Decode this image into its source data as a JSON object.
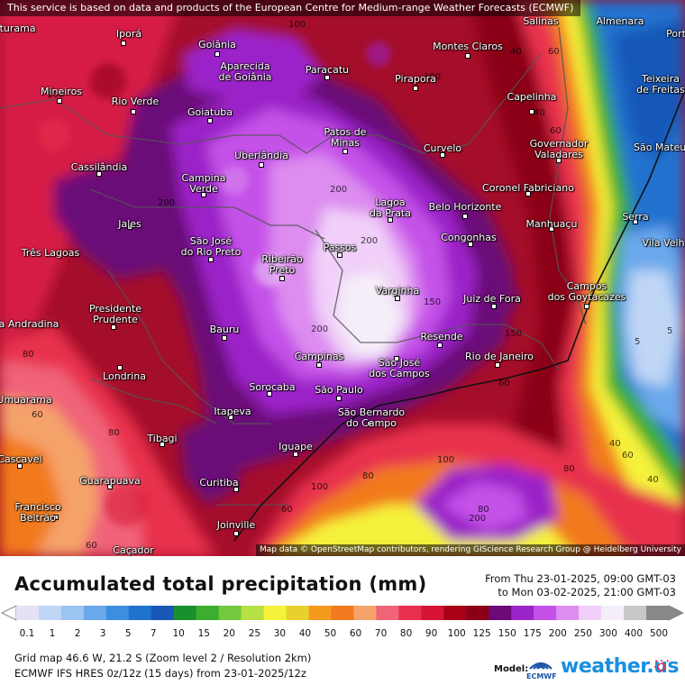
{
  "map": {
    "notice": "This service is based on data and products of the European Centre for Medium-range Weather Forecasts (ECMWF)",
    "attribution": "Map data © OpenStreetMap contributors, rendering GIScience Research Group @ Heidelberg University",
    "cities": [
      {
        "id": "iturama",
        "name": "Iturama"
      },
      {
        "id": "ipora",
        "name": "Iporá"
      },
      {
        "id": "goiania",
        "name": "Goiânia"
      },
      {
        "id": "aparecida",
        "name": "Aparecida\nde Goiânia"
      },
      {
        "id": "paracatu",
        "name": "Paracatu"
      },
      {
        "id": "montes-claros",
        "name": "Montes Claros"
      },
      {
        "id": "pirapora",
        "name": "Pirapora"
      },
      {
        "id": "salinas",
        "name": "Salinas"
      },
      {
        "id": "almenara",
        "name": "Almenara"
      },
      {
        "id": "porto",
        "name": "Port"
      },
      {
        "id": "mineiros",
        "name": "Mineiros"
      },
      {
        "id": "rio-verde",
        "name": "Rio Verde"
      },
      {
        "id": "goiatuba",
        "name": "Goiatuba"
      },
      {
        "id": "capelinha",
        "name": "Capelinha"
      },
      {
        "id": "teixeira",
        "name": "Teixeira\nde Freitas"
      },
      {
        "id": "patos",
        "name": "Patos de\nMinas"
      },
      {
        "id": "curvelo",
        "name": "Curvelo"
      },
      {
        "id": "governador",
        "name": "Governador\nValadares"
      },
      {
        "id": "sao-mateus",
        "name": "São Mateus"
      },
      {
        "id": "uberlandia",
        "name": "Uberlândia"
      },
      {
        "id": "cassilandia",
        "name": "Cassilândia"
      },
      {
        "id": "campina-verde",
        "name": "Campina\nVerde"
      },
      {
        "id": "coronel",
        "name": "Coronel Fabriciano"
      },
      {
        "id": "lagoa-prata",
        "name": "Lagoa\nda Prata"
      },
      {
        "id": "belo-horizonte",
        "name": "Belo Horizonte"
      },
      {
        "id": "manhuacu",
        "name": "Manhuaçu"
      },
      {
        "id": "serra",
        "name": "Serra"
      },
      {
        "id": "vila-velha",
        "name": "Vila Velh"
      },
      {
        "id": "jales",
        "name": "Jales"
      },
      {
        "id": "sao-jose-rio-preto",
        "name": "São José\ndo Rio Preto"
      },
      {
        "id": "congonhas",
        "name": "Congonhas"
      },
      {
        "id": "tres-lagoas",
        "name": "Três Lagoas"
      },
      {
        "id": "passos",
        "name": "Passos"
      },
      {
        "id": "ribeirao-preto",
        "name": "Ribeirão\nPreto"
      },
      {
        "id": "campos",
        "name": "Campos\ndos Goytacazes"
      },
      {
        "id": "varginha",
        "name": "Varginha"
      },
      {
        "id": "juiz-de-fora",
        "name": "Juiz de Fora"
      },
      {
        "id": "presidente-prudente",
        "name": "Presidente\nPrudente"
      },
      {
        "id": "andradina",
        "name": "a Andradina"
      },
      {
        "id": "bauru",
        "name": "Bauru"
      },
      {
        "id": "resende",
        "name": "Resende"
      },
      {
        "id": "campinas",
        "name": "Campinas"
      },
      {
        "id": "sao-jose-campos",
        "name": "São José\ndos Campos"
      },
      {
        "id": "rio",
        "name": "Rio de Janeiro"
      },
      {
        "id": "londrina",
        "name": "Londrina"
      },
      {
        "id": "sorocaba",
        "name": "Sorocaba"
      },
      {
        "id": "sao-paulo",
        "name": "São Paulo"
      },
      {
        "id": "umuarama",
        "name": "Umuarama"
      },
      {
        "id": "itapeva",
        "name": "Itapeva"
      },
      {
        "id": "sao-bernardo",
        "name": "São Bernardo\ndo Campo"
      },
      {
        "id": "tibagi",
        "name": "Tibagi"
      },
      {
        "id": "iguape",
        "name": "Iguape"
      },
      {
        "id": "cascavel",
        "name": "Cascavel"
      },
      {
        "id": "guarapuava",
        "name": "Guarapuava"
      },
      {
        "id": "curitiba",
        "name": "Curitiba"
      },
      {
        "id": "francisco-beltrao",
        "name": "Francisco\nBeltrão"
      },
      {
        "id": "joinville",
        "name": "Joinville"
      },
      {
        "id": "cacador",
        "name": "Caçador"
      }
    ],
    "values": [
      "60",
      "80",
      "100",
      "100",
      "200",
      "200",
      "200",
      "150",
      "200",
      "100",
      "80",
      "60",
      "40",
      "60",
      "40",
      "60",
      "80",
      "100",
      "80",
      "60",
      "80",
      "40",
      "60",
      "100",
      "200",
      "150",
      "60",
      "40",
      "5",
      "5",
      "80",
      "60"
    ]
  },
  "legend": {
    "title": "Accumulated total precipitation (mm)",
    "period_from": "From Thu 23-01-2025, 09:00 GMT-03",
    "period_to": "to Mon 03-02-2025, 21:00 GMT-03",
    "ticks": [
      "0.1",
      "1",
      "2",
      "3",
      "5",
      "7",
      "10",
      "15",
      "20",
      "25",
      "30",
      "40",
      "50",
      "60",
      "70",
      "80",
      "90",
      "100",
      "125",
      "150",
      "175",
      "200",
      "250",
      "300",
      "400",
      "500"
    ],
    "colors": [
      "#e4e0f5",
      "#bfd6f5",
      "#9cc4f2",
      "#6aa8ec",
      "#3d8ee0",
      "#2072cf",
      "#1958b8",
      "#1a8f2e",
      "#3cae2f",
      "#74c83d",
      "#b6e044",
      "#f5f23a",
      "#e8d12d",
      "#f59a1f",
      "#f27a1f",
      "#f5a36b",
      "#f06478",
      "#e8304e",
      "#d61436",
      "#a80016",
      "#8b0016",
      "#6b0a78",
      "#9b24c8",
      "#c451e8",
      "#dd8cf0",
      "#f0d0f8",
      "#f5eef8",
      "#c8c8c8",
      "#888888"
    ]
  },
  "info": {
    "line1": "Grid map 46.6 W, 21.2 S (Zoom level 2 / Resolution 2km)",
    "line2": "ECMWF IFS HRES 0z/12z (15 days) from  23-01-2025/12z",
    "model_label": "Model:",
    "ecmwf_logo_text": "ECMWF",
    "brand": "weather.us"
  }
}
